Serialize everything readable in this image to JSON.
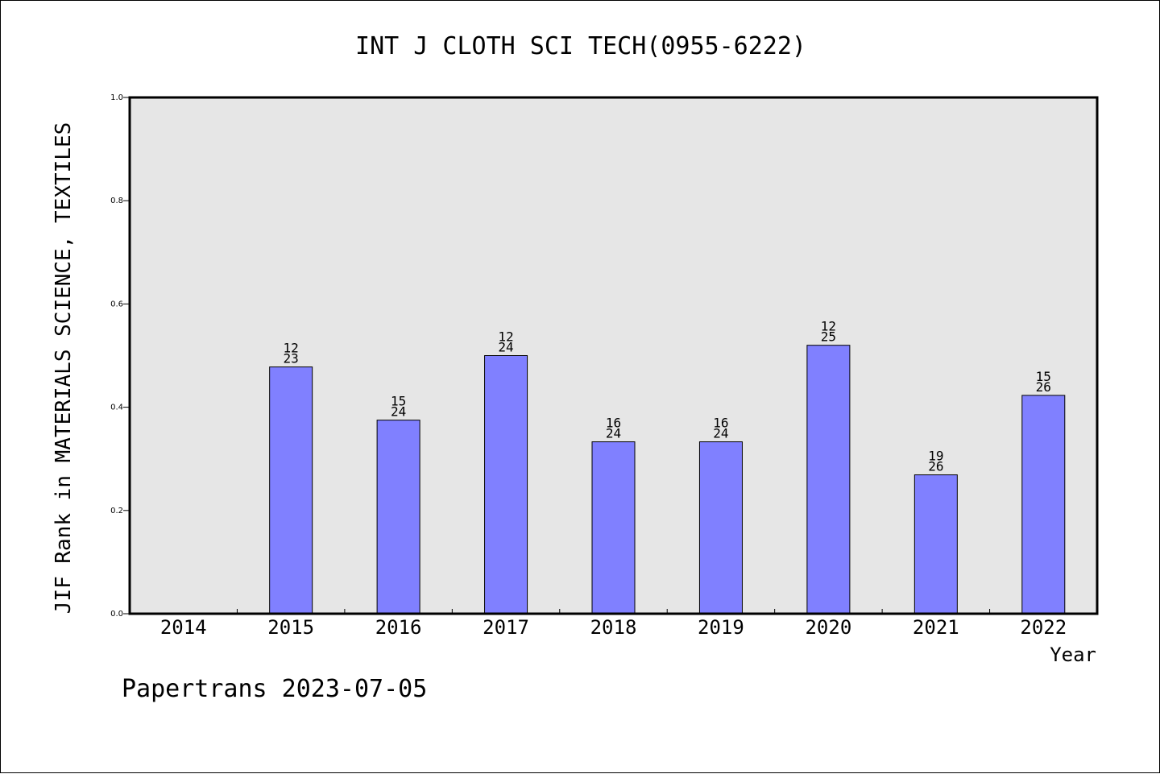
{
  "chart_data": {
    "type": "bar",
    "title": "INT J CLOTH SCI TECH(0955-6222)",
    "xlabel": "Year",
    "ylabel": "JIF Rank in MATERIALS SCIENCE, TEXTILES",
    "categories": [
      "2014",
      "2015",
      "2016",
      "2017",
      "2018",
      "2019",
      "2020",
      "2021",
      "2022"
    ],
    "values": [
      null,
      0.478,
      0.375,
      0.5,
      0.333,
      0.333,
      0.52,
      0.269,
      0.423
    ],
    "rank_labels": [
      {
        "rank": "",
        "total": ""
      },
      {
        "rank": "12",
        "total": "23"
      },
      {
        "rank": "15",
        "total": "24"
      },
      {
        "rank": "12",
        "total": "24"
      },
      {
        "rank": "16",
        "total": "24"
      },
      {
        "rank": "16",
        "total": "24"
      },
      {
        "rank": "12",
        "total": "25"
      },
      {
        "rank": "19",
        "total": "26"
      },
      {
        "rank": "15",
        "total": "26"
      }
    ],
    "ylim": [
      0,
      1.0
    ],
    "yticks": [
      "0.0",
      "0.2",
      "0.4",
      "0.6",
      "0.8",
      "1.0"
    ],
    "grid": false,
    "bar_color": "#8080ff",
    "plot_background": "#e6e6e6"
  },
  "footer": "Papertrans 2023-07-05"
}
